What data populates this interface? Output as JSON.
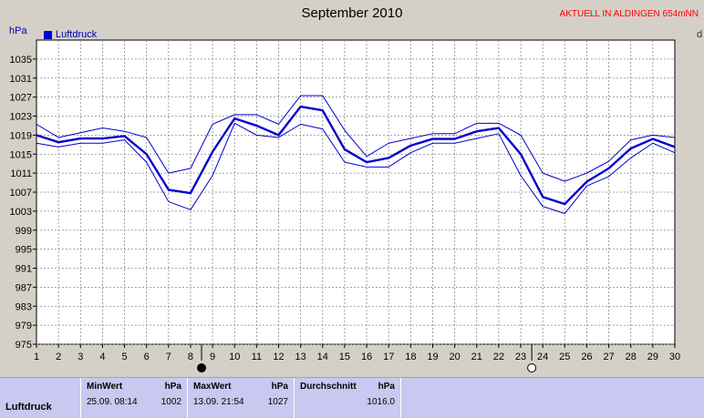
{
  "header": {
    "title": "September 2010",
    "badge": "AKTUELL IN ALDINGEN 654mNN",
    "edge_letter": "d"
  },
  "chart_data": {
    "type": "line",
    "title": "September 2010",
    "ylabel": "hPa",
    "xlabel": "",
    "legend": {
      "label": "Luftdruck",
      "placement": "top-left"
    },
    "x": [
      1,
      2,
      3,
      4,
      5,
      6,
      7,
      8,
      9,
      10,
      11,
      12,
      13,
      14,
      15,
      16,
      17,
      18,
      19,
      20,
      21,
      22,
      23,
      24,
      25,
      26,
      27,
      28,
      29,
      30
    ],
    "ylim": [
      975,
      1039
    ],
    "yticks": [
      975,
      979,
      983,
      987,
      991,
      995,
      999,
      1003,
      1007,
      1011,
      1015,
      1019,
      1023,
      1027,
      1031,
      1035
    ],
    "xlim": [
      1,
      30
    ],
    "grid": true,
    "series": [
      {
        "name": "Luftdruck",
        "role": "mean",
        "values": [
          1019,
          1017.5,
          1018.3,
          1018.3,
          1018.8,
          1015,
          1007.5,
          1006.8,
          1015.5,
          1022.5,
          1021,
          1019,
          1025,
          1024.2,
          1016,
          1013.3,
          1014.2,
          1016.8,
          1018.2,
          1018.2,
          1019.8,
          1020.5,
          1015,
          1006,
          1004.5,
          1009.2,
          1012,
          1016.2,
          1018.2,
          1016.5
        ]
      },
      {
        "role": "max",
        "values": [
          1021.3,
          1018.5,
          1019.5,
          1020.5,
          1019.8,
          1018.5,
          1011,
          1012,
          1021.3,
          1023.3,
          1023.3,
          1021.3,
          1027.3,
          1027.3,
          1020,
          1014.5,
          1017.3,
          1018.3,
          1019.3,
          1019.3,
          1021.5,
          1021.5,
          1019,
          1011,
          1009.3,
          1011,
          1013.5,
          1018,
          1019,
          1018.5
        ]
      },
      {
        "role": "min",
        "values": [
          1017.3,
          1016.5,
          1017.3,
          1017.3,
          1018,
          1013.3,
          1005,
          1003.3,
          1010.5,
          1021.5,
          1019,
          1018.5,
          1021.3,
          1020.3,
          1013.3,
          1012.3,
          1012.3,
          1015.3,
          1017.3,
          1017.3,
          1018.3,
          1019.3,
          1010.5,
          1004,
          1002.5,
          1008.3,
          1010.3,
          1014.2,
          1017.3,
          1015.3
        ]
      }
    ],
    "moon_markers": [
      {
        "x": 8.5,
        "phase": "new"
      },
      {
        "x": 23.5,
        "phase": "full"
      }
    ],
    "colors": {
      "line": "#0000cc",
      "plot_bg": "#ffffff",
      "grid": "#888888",
      "badge": "#ff0000"
    }
  },
  "stats": {
    "row_label": "Luftdruck",
    "min": {
      "header": "MinWert",
      "unit": "hPa",
      "datetime": "25.09.  08:14",
      "value": "1002"
    },
    "max": {
      "header": "MaxWert",
      "unit": "hPa",
      "datetime": "13.09.  21:54",
      "value": "1027"
    },
    "avg": {
      "header": "Durchschnitt",
      "unit": "hPa",
      "value": "1016.0"
    }
  }
}
